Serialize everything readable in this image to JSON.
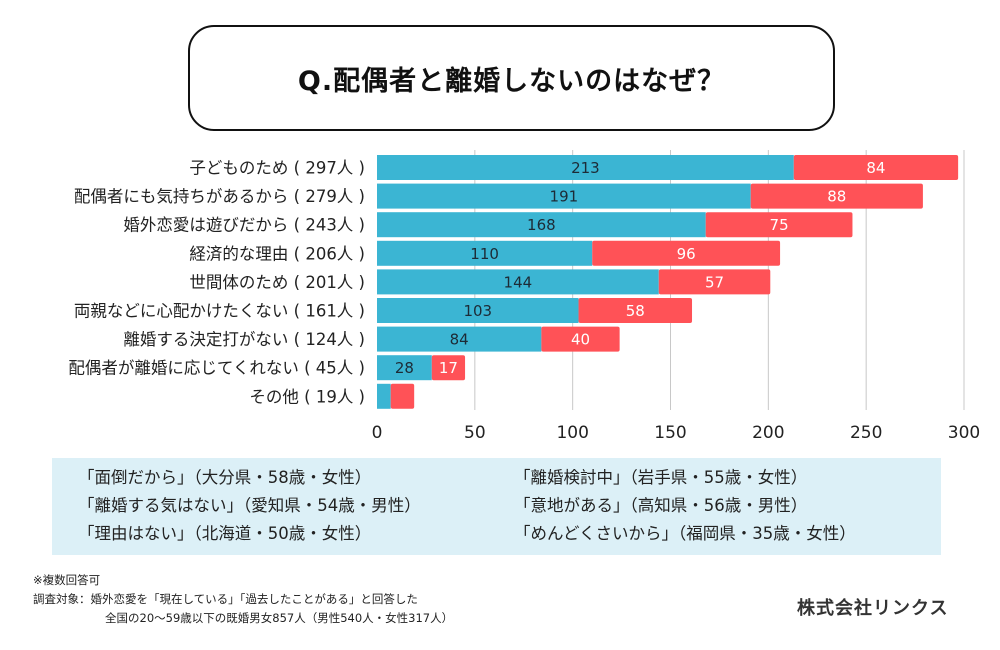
{
  "title": "Q.配偶者と離婚しないのはなぜ？",
  "colors": {
    "series1": "#3bb5d3",
    "series2": "#ff5257",
    "grid": "#c8c8c8",
    "quote_bg": "#dcf0f7"
  },
  "chart_data": {
    "type": "bar",
    "orientation": "horizontal",
    "stacked": true,
    "title": "Q.配偶者と離婚しないのはなぜ？",
    "categories": [
      "子どものため ( 297人 )",
      "配偶者にも気持ちがあるから ( 279人 )",
      "婚外恋愛は遊びだから ( 243人 )",
      "経済的な理由 ( 206人 )",
      "世間体のため ( 201人 )",
      "両親などに心配かけたくない ( 161人 )",
      "離婚する決定打がない ( 124人 )",
      "配偶者が離婚に応じてくれない ( 45人 )",
      "その他 ( 19人 )"
    ],
    "totals": [
      297,
      279,
      243,
      206,
      201,
      161,
      124,
      45,
      19
    ],
    "series": [
      {
        "name": "series1",
        "color": "#3bb5d3",
        "values": [
          213,
          191,
          168,
          110,
          144,
          103,
          84,
          28,
          7
        ],
        "labels": [
          "213",
          "191",
          "168",
          "110",
          "144",
          "103",
          "84",
          "28",
          ""
        ]
      },
      {
        "name": "series2",
        "color": "#ff5257",
        "values": [
          84,
          88,
          75,
          96,
          57,
          58,
          40,
          17,
          12
        ],
        "labels": [
          "84",
          "88",
          "75",
          "96",
          "57",
          "58",
          "40",
          "17",
          ""
        ]
      }
    ],
    "xlim": [
      0,
      300
    ],
    "xticks": [
      0,
      50,
      100,
      150,
      200,
      250,
      300
    ],
    "xtick_labels": [
      "0",
      "50",
      "100",
      "150",
      "200",
      "250",
      "300"
    ],
    "grid": true,
    "xlabel": "",
    "ylabel": "",
    "legend": "none"
  },
  "quotes": {
    "left": [
      "「面倒だから」（大分県・58歳・女性）",
      "「離婚する気はない」（愛知県・54歳・男性）",
      "「理由はない」（北海道・50歳・女性）"
    ],
    "right": [
      "「離婚検討中」（岩手県・55歳・女性）",
      "「意地がある」（高知県・56歳・男性）",
      "「めんどくさいから」（福岡県・35歳・女性）"
    ]
  },
  "notes": {
    "multiple": "※複数回答可",
    "target_line1": "調査対象：婚外恋愛を「現在している」「過去したことがある」と回答した",
    "target_line2": "全国の20〜59歳以下の既婚男女857人（男性540人・女性317人）"
  },
  "company": "株式会社リンクス"
}
